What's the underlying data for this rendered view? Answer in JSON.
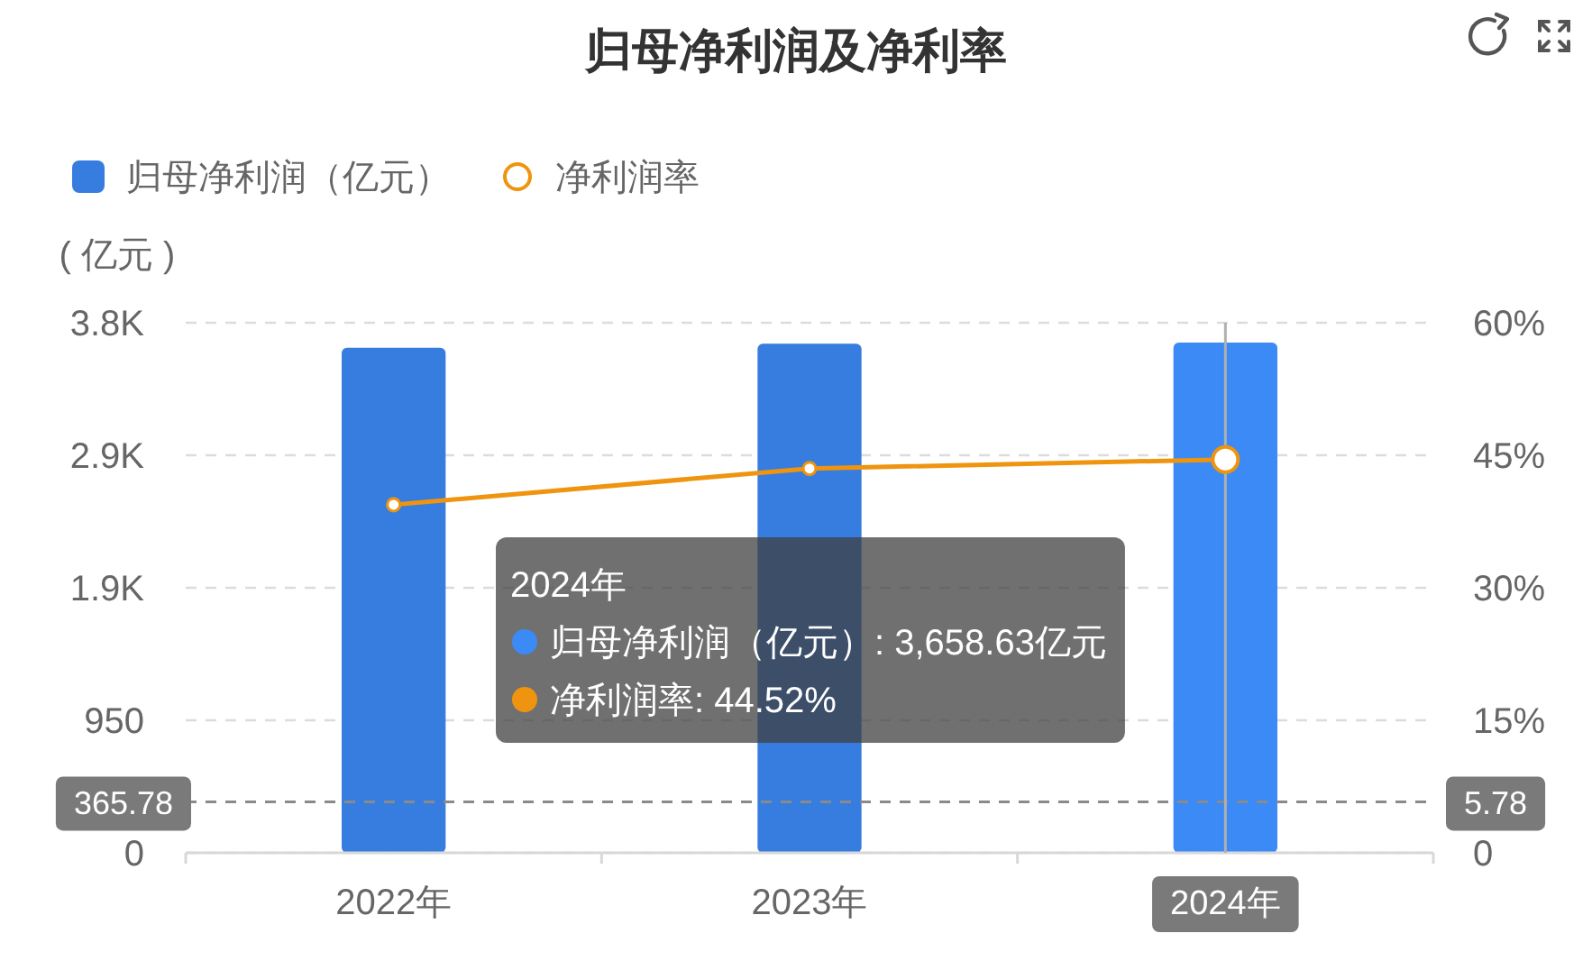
{
  "chart_data": {
    "type": "bar",
    "title": "归母净利润及净利率",
    "ylabel": "( 亿元 )",
    "categories": [
      "2022年",
      "2023年",
      "2024年"
    ],
    "series": [
      {
        "name": "归母净利润（亿元）",
        "colors": [
          "#377ddf",
          "#377ddf",
          "#3b8af5"
        ],
        "values": [
          3620,
          3650,
          3658.63
        ]
      },
      {
        "name": "净利润率",
        "type": "line",
        "axis": "y2",
        "color": "#ef940f",
        "values": [
          39.4,
          43.5,
          44.52
        ]
      }
    ],
    "ylim": [
      0,
      3800
    ],
    "yticks": [
      0,
      950,
      {
        "value": 1900,
        "label": "1.9K"
      },
      {
        "value": 2850,
        "label": "2.9K"
      },
      {
        "value": 3800,
        "label": "3.8K"
      }
    ],
    "y2lim": [
      0,
      60
    ],
    "y2ticks": [
      0,
      {
        "value": 15,
        "label": "15%"
      },
      {
        "value": 30,
        "label": "30%"
      },
      {
        "value": 45,
        "label": "45%"
      },
      {
        "value": 60,
        "label": "60%"
      }
    ],
    "grid": "y",
    "legend": "top left",
    "marker": "circle",
    "line_style": "solid",
    "ref_lines": [
      {
        "axis": "y",
        "value": 365.78,
        "label": "365.78",
        "color": "#8a8a8a",
        "line_style": "dashed"
      },
      {
        "axis": "x",
        "value": "2024年",
        "color": "#b0b0b0",
        "line_style": "solid"
      }
    ],
    "annotations": [
      "2024年",
      "归母净利润（亿元）: 3,658.63亿元",
      "净利润率: 44.52%",
      "5.78"
    ]
  }
}
